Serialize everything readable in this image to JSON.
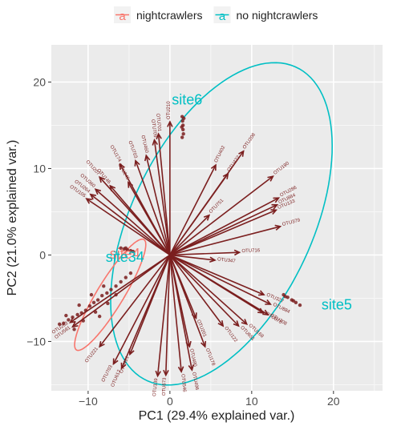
{
  "chart_data": {
    "type": "scatter",
    "subtype": "pca-biplot",
    "title": "",
    "xlabel": "PC1 (29.4% explained var.)",
    "ylabel": "PC2 (21.0% explained var.)",
    "xlim": [
      -14.5,
      26
    ],
    "ylim": [
      -15.7,
      24.3
    ],
    "x_ticks": [
      -10,
      0,
      10,
      20
    ],
    "y_ticks": [
      -10,
      0,
      10,
      20
    ],
    "grid": true,
    "legend_position": "top",
    "legend": [
      {
        "name": "nightcrawlers",
        "color": "#F8766D"
      },
      {
        "name": "no nightcrawlers",
        "color": "#00BFC4"
      }
    ],
    "group_labels": [
      {
        "text": "site6",
        "x": 2.1,
        "y": 17.4,
        "color": "#00BFC4"
      },
      {
        "text": "site4",
        "x": -5.5,
        "y": -0.4,
        "color": "#F8766D"
      },
      {
        "text": "site34",
        "x": -5.5,
        "y": -0.8,
        "color": "#00BFC4"
      },
      {
        "text": "site5",
        "x": 20.4,
        "y": -6.3,
        "color": "#00BFC4"
      }
    ],
    "ellipses": [
      {
        "group": "no nightcrawlers",
        "cx": 6.3,
        "cy": 3.6,
        "rx": 20.3,
        "ry": 10.9,
        "angle": 62
      },
      {
        "group": "nightcrawlers",
        "cx": -7.3,
        "cy": -4.6,
        "rx": 7.6,
        "ry": 1.6,
        "angle": 57
      }
    ],
    "loadings": [
      {
        "label": "OTU379",
        "x": 13.5,
        "y": 3.3
      },
      {
        "label": "OTU716",
        "x": 8.5,
        "y": 0.3
      },
      {
        "label": "OTU347",
        "x": 5.5,
        "y": -0.6
      },
      {
        "label": "OTU208",
        "x": 9.0,
        "y": 12.0
      },
      {
        "label": "OTU402",
        "x": 5.6,
        "y": 10.4
      },
      {
        "label": "OTU422",
        "x": 7.1,
        "y": 9.4
      },
      {
        "label": "OTU751",
        "x": 4.8,
        "y": 4.6
      },
      {
        "label": "OTU286",
        "x": 13.3,
        "y": 6.6
      },
      {
        "label": "OTU190",
        "x": 12.6,
        "y": 9.1
      },
      {
        "label": "OTU884",
        "x": 13.1,
        "y": 5.8
      },
      {
        "label": "OTU133",
        "x": 13.0,
        "y": 5.2
      },
      {
        "label": "OTU210",
        "x": 0.0,
        "y": 15.4
      },
      {
        "label": "OTU701",
        "x": -1.4,
        "y": 14.0
      },
      {
        "label": "OTU709",
        "x": -1.9,
        "y": 13.3
      },
      {
        "label": "OTU460",
        "x": -2.9,
        "y": 11.5
      },
      {
        "label": "OTU703",
        "x": -4.2,
        "y": 10.9
      },
      {
        "label": "OTU174",
        "x": -6.1,
        "y": 10.5
      },
      {
        "label": "OTU245",
        "x": -5.1,
        "y": 8.4
      },
      {
        "label": "OTU146",
        "x": -7.3,
        "y": 8.0
      },
      {
        "label": "OTU207",
        "x": -8.6,
        "y": 9.0
      },
      {
        "label": "OTU360",
        "x": -9.1,
        "y": 7.6
      },
      {
        "label": "OTU264",
        "x": -9.7,
        "y": 7.0
      },
      {
        "label": "OTU105",
        "x": -10.2,
        "y": 6.5
      },
      {
        "label": "OTU221",
        "x": -8.6,
        "y": -10.6
      },
      {
        "label": "OTU703",
        "x": -6.9,
        "y": -12.6
      },
      {
        "label": "OTU612",
        "x": -5.9,
        "y": -13.1
      },
      {
        "label": "OTU421",
        "x": -4.9,
        "y": -11.5
      },
      {
        "label": "OTU139",
        "x": -1.5,
        "y": -14.0
      },
      {
        "label": "OTU673",
        "x": -0.5,
        "y": -13.9
      },
      {
        "label": "OTU546",
        "x": 1.4,
        "y": -13.5
      },
      {
        "label": "OTU496",
        "x": 2.7,
        "y": -13.3
      },
      {
        "label": "OTU480",
        "x": 2.4,
        "y": -10.6
      },
      {
        "label": "OTU178",
        "x": 4.3,
        "y": -10.6
      },
      {
        "label": "OTU201",
        "x": 3.2,
        "y": -7.3
      },
      {
        "label": "OTU122",
        "x": 6.5,
        "y": -8.2
      },
      {
        "label": "OTU651",
        "x": 8.4,
        "y": -8.2
      },
      {
        "label": "OTU168",
        "x": 9.4,
        "y": -8.0
      },
      {
        "label": "OTU878",
        "x": 11.4,
        "y": -6.7
      },
      {
        "label": "OTU708",
        "x": 12.0,
        "y": -6.9
      },
      {
        "label": "OTU884",
        "x": 12.3,
        "y": -5.7
      },
      {
        "label": "OTU327",
        "x": 11.5,
        "y": -4.6
      },
      {
        "label": "OTU263",
        "x": -12.2,
        "y": -7.8
      },
      {
        "label": "OTU581",
        "x": -11.9,
        "y": -8.3
      }
    ],
    "scores": [
      {
        "x": 1.5,
        "y": 16.0
      },
      {
        "x": 1.55,
        "y": 15.5
      },
      {
        "x": 1.6,
        "y": 15.0
      },
      {
        "x": 1.6,
        "y": 14.5
      },
      {
        "x": 1.65,
        "y": 14.0
      },
      {
        "x": 1.5,
        "y": 13.6
      },
      {
        "x": 1.7,
        "y": 15.8
      },
      {
        "x": 1.45,
        "y": 14.8
      },
      {
        "x": 13.9,
        "y": -4.6
      },
      {
        "x": 14.4,
        "y": -4.9
      },
      {
        "x": 14.9,
        "y": -5.2
      },
      {
        "x": 15.4,
        "y": -5.5
      },
      {
        "x": 15.9,
        "y": -5.8
      },
      {
        "x": 14.1,
        "y": -4.8
      },
      {
        "x": 15.1,
        "y": -5.3
      },
      {
        "x": -6.0,
        "y": 0.8
      },
      {
        "x": -5.6,
        "y": 0.7
      },
      {
        "x": -5.2,
        "y": 0.6
      },
      {
        "x": -4.8,
        "y": 0.5
      },
      {
        "x": -5.4,
        "y": 0.8
      },
      {
        "x": -4.5,
        "y": 0.4
      },
      {
        "x": -13.5,
        "y": -8.0
      },
      {
        "x": -13.0,
        "y": -7.9
      },
      {
        "x": -12.4,
        "y": -7.5
      },
      {
        "x": -11.9,
        "y": -7.2
      },
      {
        "x": -11.3,
        "y": -6.9
      },
      {
        "x": -10.8,
        "y": -6.7
      },
      {
        "x": -10.3,
        "y": -6.4
      },
      {
        "x": -9.8,
        "y": -5.9
      },
      {
        "x": -9.3,
        "y": -5.5
      },
      {
        "x": -8.8,
        "y": -5.2
      },
      {
        "x": -8.3,
        "y": -4.7
      },
      {
        "x": -7.7,
        "y": -4.4
      },
      {
        "x": -7.2,
        "y": -4.0
      },
      {
        "x": -6.6,
        "y": -3.6
      },
      {
        "x": -6.0,
        "y": -3.1
      },
      {
        "x": -5.4,
        "y": -2.6
      },
      {
        "x": -4.8,
        "y": -2.1
      },
      {
        "x": -12.7,
        "y": -7.0
      },
      {
        "x": -11.1,
        "y": -5.8
      },
      {
        "x": -9.6,
        "y": -4.6
      },
      {
        "x": -8.1,
        "y": -3.6
      },
      {
        "x": -10.6,
        "y": -7.6
      },
      {
        "x": -9.1,
        "y": -6.6
      },
      {
        "x": -7.6,
        "y": -5.6
      },
      {
        "x": -6.6,
        "y": -4.6
      },
      {
        "x": -11.7,
        "y": -8.6
      },
      {
        "x": -8.6,
        "y": -7.1
      }
    ]
  }
}
